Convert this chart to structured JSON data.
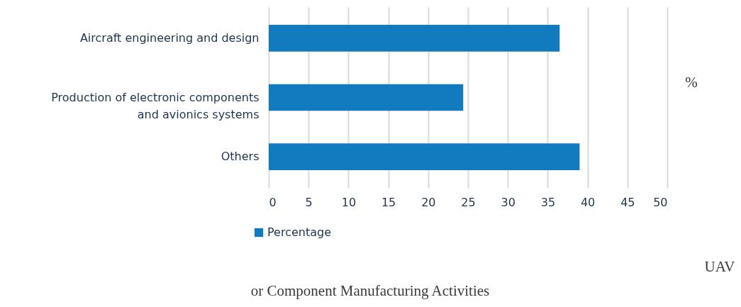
{
  "chart_data": {
    "type": "bar",
    "orientation": "horizontal",
    "categories": [
      "Aircraft engineering and design",
      "Production of electronic components and avionics systems",
      "Others"
    ],
    "series": [
      {
        "name": "Percentage",
        "color": "#127bbf",
        "values": [
          36.5,
          24.4,
          39.0
        ]
      }
    ],
    "xlim": [
      0,
      50
    ],
    "xticks": [
      0,
      5,
      10,
      15,
      20,
      25,
      30,
      35,
      40,
      45,
      50
    ],
    "grid": "x",
    "legend": "bottom left",
    "annotations": [
      "%",
      "UAV",
      "or Component Manufacturing Activities"
    ]
  }
}
